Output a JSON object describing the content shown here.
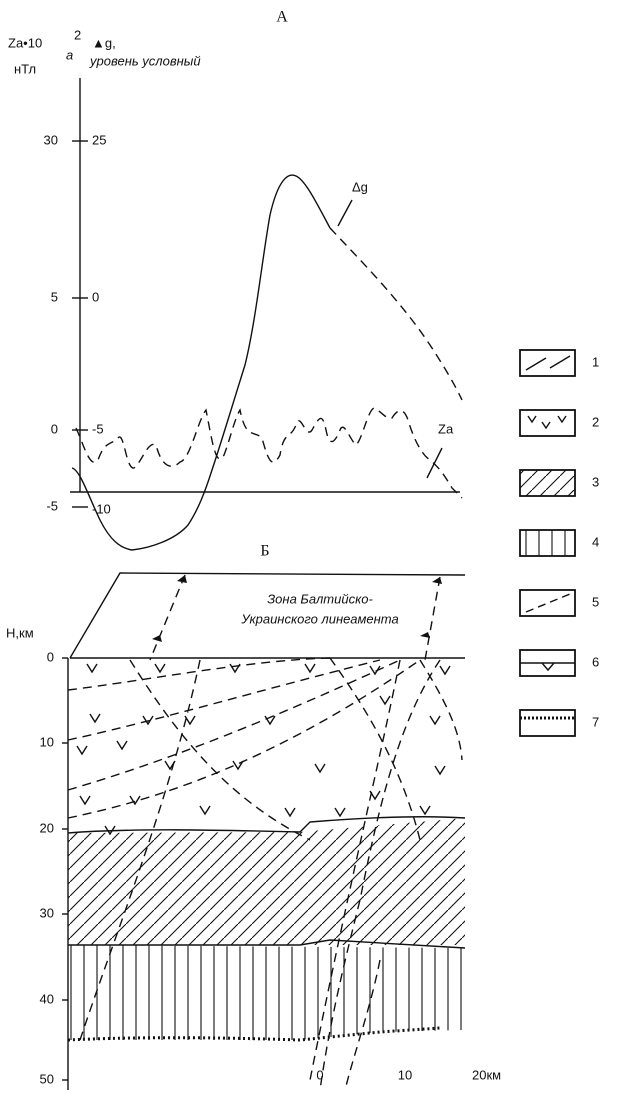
{
  "panel_a": {
    "label": "А",
    "y_axis_left": {
      "title": "Za•10",
      "superscript": "2",
      "subscript": "a",
      "unit": "нТл",
      "ticks": [
        "30",
        "5",
        "0",
        "-5"
      ]
    },
    "y_axis_right": {
      "title": "▲g,",
      "subtitle": "уровень условный",
      "ticks": [
        "25",
        "0",
        "-5",
        "-10"
      ]
    },
    "curve_labels": [
      "Δg",
      "Za"
    ]
  },
  "panel_b": {
    "label": "Б",
    "zone_label": [
      "Зона Балтийско-",
      "Украинского линеамента"
    ],
    "depth_axis": {
      "title": "H,км",
      "ticks": [
        "0",
        "10",
        "20",
        "30",
        "40",
        "50"
      ]
    },
    "scale": {
      "ticks": [
        "0",
        "10"
      ],
      "end": "20км"
    }
  },
  "legend": [
    "1",
    "2",
    "3",
    "4",
    "5",
    "6",
    "7"
  ]
}
